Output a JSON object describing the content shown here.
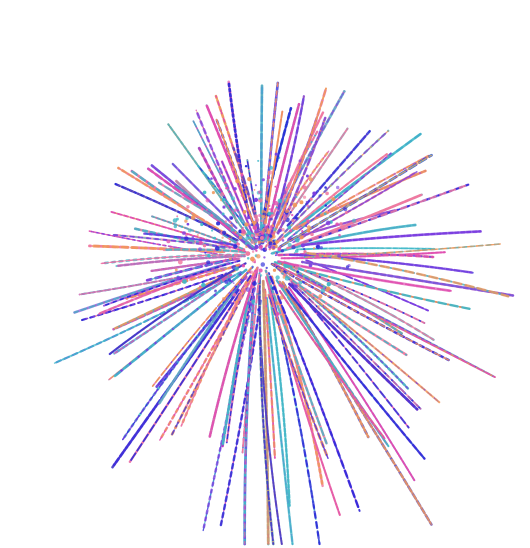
{
  "image": {
    "subject": "firework-burst",
    "background_color": "#ffffff",
    "palette": {
      "blue": "#2a2ad8",
      "violet": "#7b3fe0",
      "magenta": "#e04fb0",
      "pink": "#f07aa0",
      "orange": "#f0965a",
      "teal": "#3fb8c8"
    }
  }
}
